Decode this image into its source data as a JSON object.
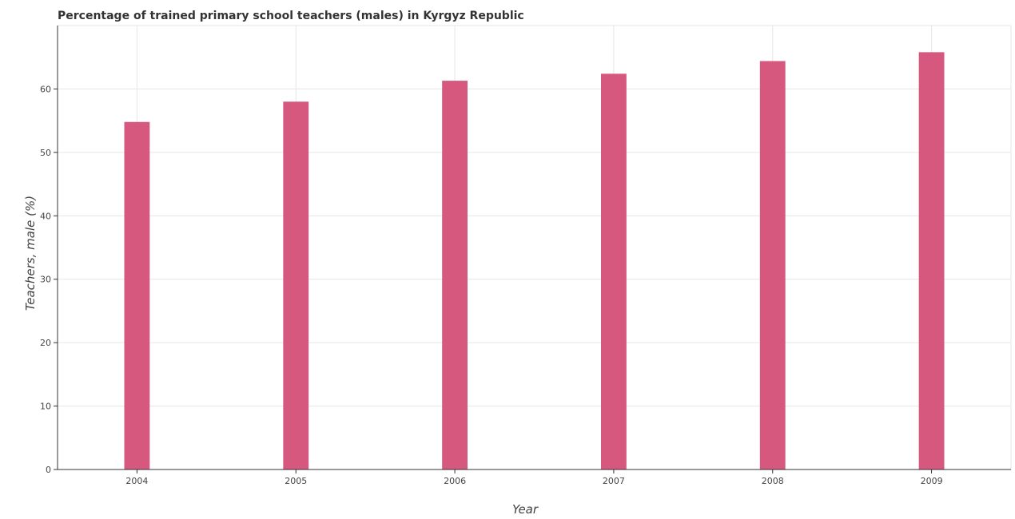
{
  "chart_data": {
    "type": "bar",
    "title": "Percentage of trained primary school teachers (males) in Kyrgyz Republic",
    "xlabel": "Year",
    "ylabel": "Teachers, male (%)",
    "categories": [
      "2004",
      "2005",
      "2006",
      "2007",
      "2008",
      "2009"
    ],
    "values": [
      54.8,
      58.0,
      61.3,
      62.4,
      64.4,
      65.8
    ],
    "ylim": [
      0,
      70
    ],
    "yticks": [
      0,
      10,
      20,
      30,
      40,
      50,
      60
    ],
    "grid": true,
    "bar_color": "#d6587f"
  }
}
